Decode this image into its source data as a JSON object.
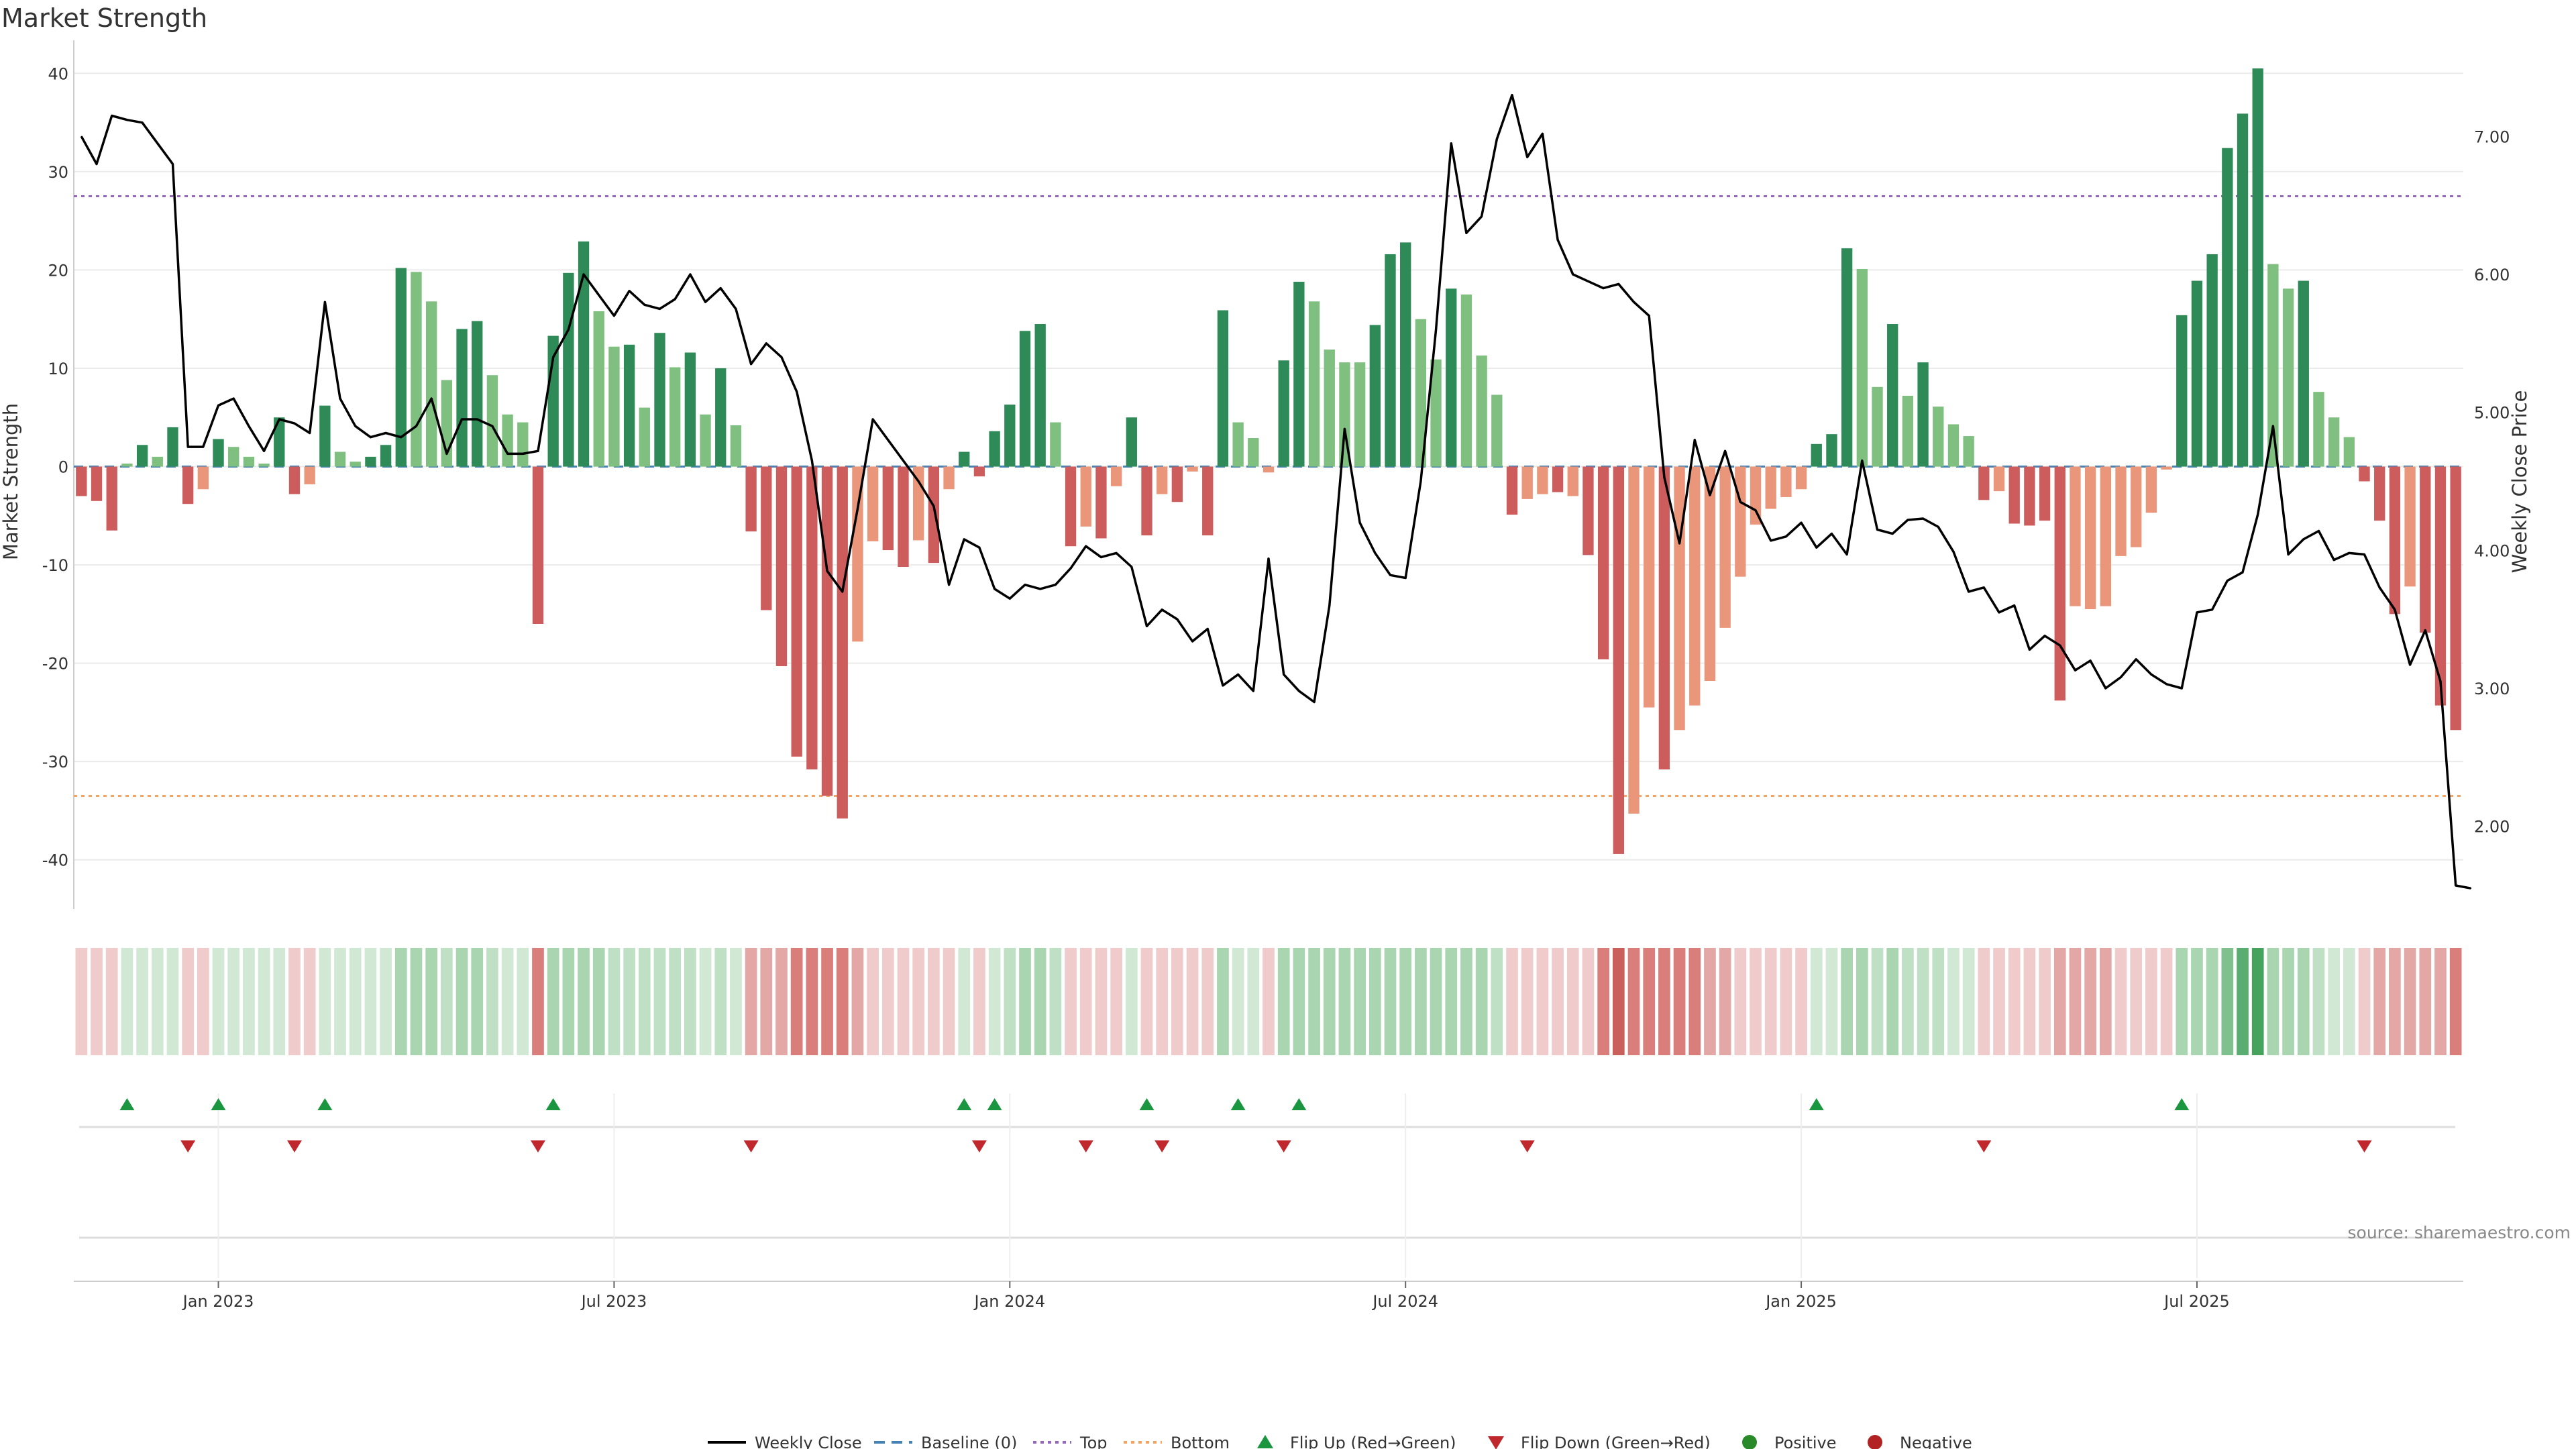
{
  "chart_data": {
    "type": "bar",
    "title": "Market Strength",
    "ylabel_left": "Market Strength",
    "ylabel_right": "Weekly Close Price",
    "ylim_left": [
      -45,
      42
    ],
    "ylim_right": [
      1.4,
      7.6
    ],
    "y_ticks_left": [
      40,
      30,
      20,
      10,
      0,
      -10,
      -20,
      -30,
      -40
    ],
    "y_tick_labels_left": [
      "40",
      "30",
      "20",
      "10",
      "0",
      "-10",
      "-20",
      "-30",
      "-40"
    ],
    "y_ticks_right": [
      7.0,
      6.0,
      5.0,
      4.0,
      3.0,
      2.0
    ],
    "y_tick_labels_right": [
      "7.00",
      "6.00",
      "5.00",
      "4.00",
      "3.00",
      "2.00"
    ],
    "x_ticks": [
      "Jan 2023",
      "Jul 2023",
      "Jan 2024",
      "Jul 2024",
      "Jan 2025",
      "Jul 2025"
    ],
    "x_tick_weeks": [
      9,
      35,
      61,
      87,
      113,
      139
    ],
    "grid": true,
    "legend_position": "bottom",
    "source": "source: sharemaestro.com",
    "top_line": 27.5,
    "bottom_line": -33.5,
    "baseline": 0,
    "market_strength": [
      -3,
      -3.5,
      -6.5,
      0.3,
      2.2,
      1,
      4,
      -3.8,
      -2.3,
      2.8,
      2,
      1,
      0.3,
      5,
      -2.8,
      -1.8,
      6.2,
      1.5,
      0.5,
      1,
      2.2,
      20.2,
      19.8,
      16.8,
      8.8,
      14,
      14.8,
      9.3,
      5.3,
      4.5,
      -16,
      13.3,
      19.7,
      22.9,
      15.8,
      12.2,
      12.4,
      6,
      13.6,
      10.1,
      11.6,
      5.3,
      10,
      4.2,
      -6.6,
      -14.6,
      -20.3,
      -29.5,
      -30.8,
      -33.5,
      -35.8,
      -17.8,
      -7.6,
      -8.5,
      -10.2,
      -7.5,
      -9.8,
      -2.3,
      1.5,
      -1,
      3.6,
      6.3,
      13.8,
      14.5,
      4.5,
      -8.1,
      -6.1,
      -7.3,
      -2,
      5,
      -7,
      -2.8,
      -3.6,
      -0.5,
      -7,
      15.9,
      4.5,
      2.9,
      -0.6,
      10.8,
      18.8,
      16.8,
      11.9,
      10.6,
      10.6,
      14.4,
      21.6,
      22.8,
      15,
      10.9,
      18.1,
      17.5,
      11.3,
      7.3,
      -4.9,
      -3.3,
      -2.8,
      -2.6,
      -3,
      -9,
      -19.6,
      -39.4,
      -35.3,
      -24.5,
      -30.8,
      -26.8,
      -24.3,
      -21.8,
      -16.4,
      -11.2,
      -5.9,
      -4.3,
      -3.1,
      -2.3,
      2.3,
      3.3,
      22.2,
      20.1,
      8.1,
      14.5,
      7.2,
      10.6,
      6.1,
      4.3,
      3.1,
      -3.4,
      -2.5,
      -5.8,
      -6,
      -5.5,
      -23.8,
      -14.2,
      -14.5,
      -14.2,
      -9.1,
      -8.2,
      -4.7,
      -0.3,
      15.4,
      18.9,
      21.6,
      32.4,
      35.9,
      40.5,
      20.6,
      18.1,
      18.9,
      7.6,
      5,
      3,
      -1.5,
      -5.5,
      -15,
      -12.2,
      -16.9,
      -24.3,
      -26.8
    ],
    "bar_shade": [
      "D",
      "D",
      "D",
      "L",
      "D",
      "L",
      "D",
      "D",
      "L",
      "D",
      "L",
      "L",
      "L",
      "D",
      "D",
      "L",
      "D",
      "L",
      "L",
      "D",
      "D",
      "D",
      "L",
      "L",
      "L",
      "D",
      "D",
      "L",
      "L",
      "L",
      "D",
      "D",
      "D",
      "D",
      "L",
      "L",
      "D",
      "L",
      "D",
      "L",
      "D",
      "L",
      "D",
      "L",
      "D",
      "D",
      "D",
      "D",
      "D",
      "D",
      "D",
      "L",
      "L",
      "D",
      "D",
      "L",
      "D",
      "L",
      "D",
      "D",
      "D",
      "D",
      "D",
      "D",
      "L",
      "D",
      "L",
      "D",
      "L",
      "D",
      "D",
      "L",
      "D",
      "L",
      "D",
      "D",
      "L",
      "L",
      "L",
      "D",
      "D",
      "L",
      "L",
      "L",
      "L",
      "D",
      "D",
      "D",
      "L",
      "L",
      "D",
      "L",
      "L",
      "L",
      "D",
      "L",
      "L",
      "D",
      "L",
      "D",
      "D",
      "D",
      "L",
      "L",
      "D",
      "L",
      "L",
      "L",
      "L",
      "L",
      "L",
      "L",
      "L",
      "L",
      "D",
      "D",
      "D",
      "L",
      "L",
      "D",
      "L",
      "D",
      "L",
      "L",
      "L",
      "D",
      "L",
      "D",
      "D",
      "D",
      "D",
      "L",
      "L",
      "L",
      "L",
      "L",
      "L",
      "L",
      "D",
      "D",
      "D",
      "D",
      "D",
      "D",
      "L",
      "L",
      "D",
      "L",
      "L",
      "L",
      "D",
      "D",
      "D",
      "L",
      "D",
      "D",
      "D"
    ],
    "weekly_close": [
      7.0,
      6.8,
      7.15,
      7.12,
      7.1,
      6.95,
      6.8,
      4.75,
      4.75,
      5.05,
      5.1,
      4.9,
      4.72,
      4.95,
      4.92,
      4.85,
      5.8,
      5.1,
      4.9,
      4.82,
      4.85,
      4.82,
      4.9,
      5.1,
      4.7,
      4.95,
      4.95,
      4.9,
      4.7,
      4.7,
      4.72,
      5.4,
      5.6,
      6.0,
      5.85,
      5.7,
      5.88,
      5.78,
      5.75,
      5.82,
      6.0,
      5.8,
      5.9,
      5.75,
      5.35,
      5.5,
      5.4,
      5.15,
      4.65,
      3.85,
      3.7,
      4.3,
      4.95,
      4.8,
      4.65,
      4.5,
      4.32,
      3.75,
      4.08,
      4.02,
      3.72,
      3.65,
      3.75,
      3.72,
      3.75,
      3.87,
      4.03,
      3.95,
      3.98,
      3.88,
      3.45,
      3.57,
      3.5,
      3.34,
      3.43,
      3.02,
      3.1,
      2.98,
      3.94,
      3.1,
      2.98,
      2.9,
      3.6,
      4.88,
      4.2,
      3.98,
      3.82,
      3.8,
      4.5,
      5.6,
      6.95,
      6.3,
      6.42,
      6.98,
      7.3,
      6.85,
      7.02,
      6.25,
      6.0,
      5.95,
      5.9,
      5.93,
      5.8,
      5.7,
      4.53,
      4.05,
      4.8,
      4.4,
      4.72,
      4.35,
      4.29,
      4.07,
      4.1,
      4.2,
      4.02,
      4.12,
      3.97,
      4.65,
      4.15,
      4.12,
      4.22,
      4.23,
      4.17,
      3.99,
      3.7,
      3.73,
      3.55,
      3.6,
      3.28,
      3.38,
      3.31,
      3.13,
      3.2,
      3.0,
      3.08,
      3.21,
      3.1,
      3.03,
      3.0,
      3.55,
      3.57,
      3.78,
      3.84,
      4.26,
      4.9,
      3.97,
      4.08,
      4.14,
      3.93,
      3.98,
      3.97,
      3.73,
      3.57,
      3.17,
      3.42,
      3.05,
      1.57,
      1.55
    ],
    "ribbon_colors": [
      "#efcccb",
      "#efcccb",
      "#efcccb",
      "#d0e8d4",
      "#d0e8d4",
      "#d0e8d4",
      "#d0e8d4",
      "#efcccb",
      "#efcccb",
      "#d0e8d4",
      "#d0e8d4",
      "#d0e8d4",
      "#d0e8d4",
      "#d0e8d4",
      "#efcccb",
      "#efcccb",
      "#d0e8d4",
      "#d0e8d4",
      "#d0e8d4",
      "#d0e8d4",
      "#d0e8d4",
      "#a9d5b1",
      "#a9d5b1",
      "#a9d5b1",
      "#c0e0c6",
      "#a9d5b1",
      "#a9d5b1",
      "#c0e0c6",
      "#d0e8d4",
      "#d0e8d4",
      "#d97e7b",
      "#a9d5b1",
      "#a9d5b1",
      "#a9d5b1",
      "#a9d5b1",
      "#c0e0c6",
      "#c0e0c6",
      "#c0e0c6",
      "#c0e0c6",
      "#c0e0c6",
      "#c0e0c6",
      "#d0e8d4",
      "#c0e0c6",
      "#d0e8d4",
      "#e3a8a5",
      "#e3a8a5",
      "#e3a8a5",
      "#d97e7b",
      "#d97e7b",
      "#d97e7b",
      "#d97e7b",
      "#e3a8a5",
      "#efcccb",
      "#efcccb",
      "#efcccb",
      "#efcccb",
      "#efcccb",
      "#efcccb",
      "#d0e8d4",
      "#efcccb",
      "#d0e8d4",
      "#c0e0c6",
      "#a9d5b1",
      "#a9d5b1",
      "#c0e0c6",
      "#efcccb",
      "#efcccb",
      "#efcccb",
      "#efcccb",
      "#d0e8d4",
      "#efcccb",
      "#efcccb",
      "#efcccb",
      "#efcccb",
      "#efcccb",
      "#a9d5b1",
      "#d0e8d4",
      "#d0e8d4",
      "#efcccb",
      "#a9d5b1",
      "#a9d5b1",
      "#a9d5b1",
      "#a9d5b1",
      "#a9d5b1",
      "#a9d5b1",
      "#a9d5b1",
      "#a9d5b1",
      "#a9d5b1",
      "#a9d5b1",
      "#a9d5b1",
      "#a9d5b1",
      "#a9d5b1",
      "#a9d5b1",
      "#c0e0c6",
      "#efcccb",
      "#efcccb",
      "#efcccb",
      "#efcccb",
      "#efcccb",
      "#efcccb",
      "#d97e7b",
      "#c9605c",
      "#d97e7b",
      "#d97e7b",
      "#d97e7b",
      "#d97e7b",
      "#d97e7b",
      "#e3a8a5",
      "#e3a8a5",
      "#efcccb",
      "#efcccb",
      "#efcccb",
      "#efcccb",
      "#efcccb",
      "#d0e8d4",
      "#d0e8d4",
      "#a9d5b1",
      "#a9d5b1",
      "#c0e0c6",
      "#a9d5b1",
      "#c0e0c6",
      "#c0e0c6",
      "#c0e0c6",
      "#d0e8d4",
      "#d0e8d4",
      "#efcccb",
      "#efcccb",
      "#efcccb",
      "#efcccb",
      "#efcccb",
      "#e3a8a5",
      "#e3a8a5",
      "#e3a8a5",
      "#e3a8a5",
      "#efcccb",
      "#efcccb",
      "#efcccb",
      "#efcccb",
      "#a9d5b1",
      "#a9d5b1",
      "#a9d5b1",
      "#7fc08e",
      "#5aad70",
      "#46a35e",
      "#a9d5b1",
      "#a9d5b1",
      "#a9d5b1",
      "#c0e0c6",
      "#d0e8d4",
      "#d0e8d4",
      "#efcccb",
      "#e3a8a5",
      "#e3a8a5",
      "#e3a8a5",
      "#e3a8a5",
      "#e3a8a5",
      "#d97e7b"
    ],
    "flip_up_weeks": [
      3,
      9,
      16,
      31,
      58,
      60,
      70,
      76,
      80,
      114,
      138
    ],
    "flip_down_weeks": [
      7,
      14,
      30,
      44,
      59,
      66,
      71,
      79,
      95,
      125,
      150
    ],
    "legend": [
      "Weekly Close",
      "Baseline (0)",
      "Top",
      "Bottom",
      "Flip Up (Red→Green)",
      "Flip Down (Green→Red)",
      "Positive",
      "Negative"
    ],
    "colors": {
      "pos_dark": "#2e8b57",
      "pos_light": "#7fbf7f",
      "neg_dark": "#cd5c5c",
      "neg_light": "#e9967a",
      "price_line": "#000000",
      "baseline": "#4682b4",
      "top_line": "#9467bd",
      "bottom_line": "#f4a460",
      "flip_up": "#1a9641",
      "flip_down": "#c0282d",
      "positive_dot": "#2a8a2a",
      "negative_dot": "#b22222",
      "grid": "#ebebeb",
      "axis": "#cccccc"
    }
  }
}
